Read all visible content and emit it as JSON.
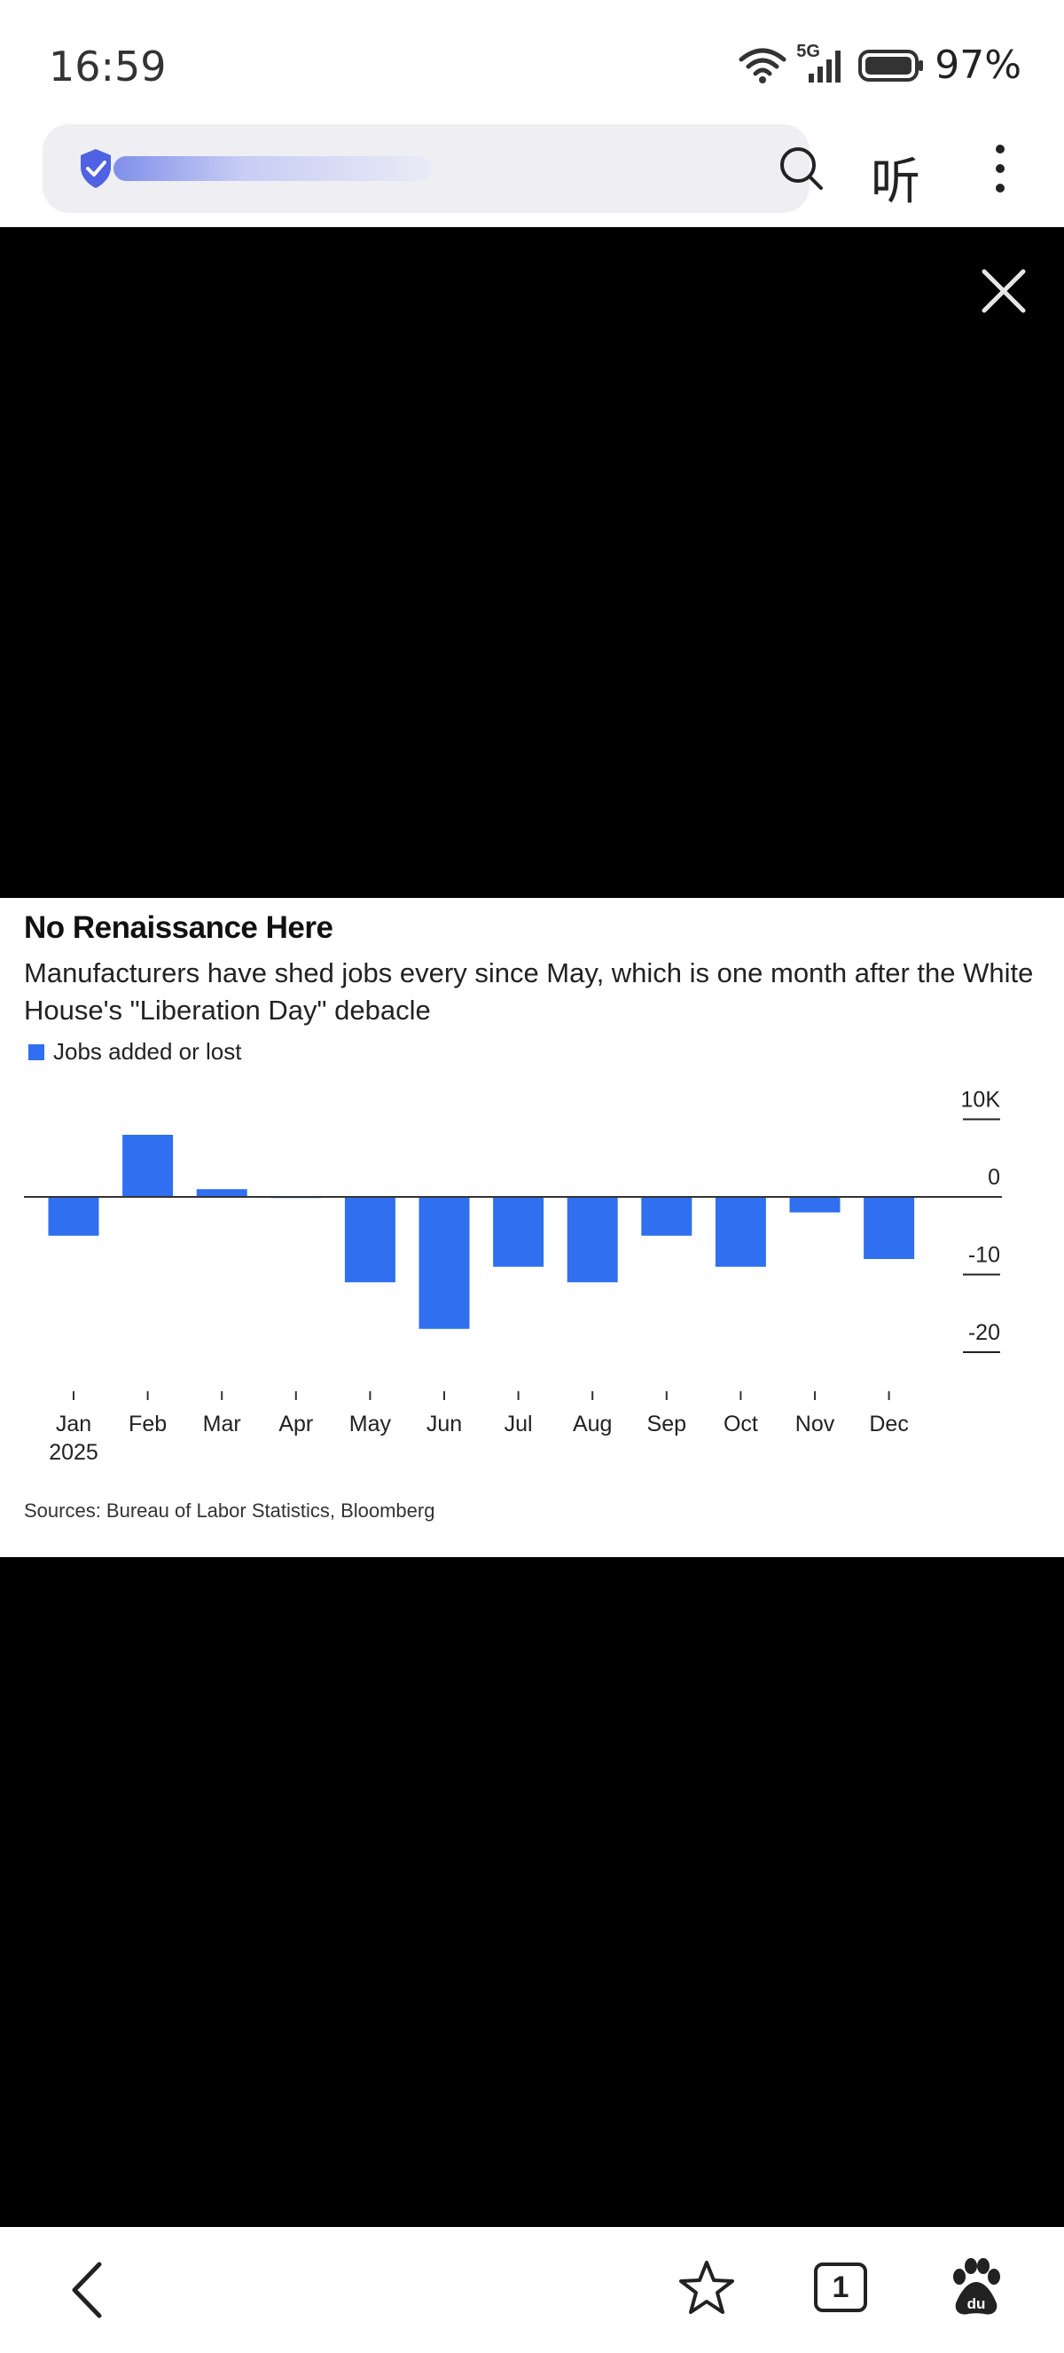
{
  "status_bar": {
    "time": "16:59",
    "network": "5G",
    "battery": "97%"
  },
  "browser": {
    "listen_label": "听",
    "tab_count": "1"
  },
  "chart_data": {
    "type": "bar",
    "title": "No Renaissance Here",
    "subtitle": "Manufacturers have shed jobs every since May, which is one month after the White House's \"Liberation Day\" debacle",
    "legend": [
      "Jobs added or lost"
    ],
    "categories": [
      "Jan",
      "Feb",
      "Mar",
      "Apr",
      "May",
      "Jun",
      "Jul",
      "Aug",
      "Sep",
      "Oct",
      "Nov",
      "Dec"
    ],
    "year_label": "2025",
    "series": [
      {
        "name": "Jobs added or lost",
        "values": [
          -5,
          8,
          1,
          0,
          -11,
          -17,
          -9,
          -11,
          -5,
          -9,
          -2,
          -8
        ]
      }
    ],
    "y_ticks": [
      {
        "value": 10,
        "label": "10K"
      },
      {
        "value": 0,
        "label": "0"
      },
      {
        "value": -10,
        "label": "-10"
      },
      {
        "value": -20,
        "label": "-20"
      }
    ],
    "ylim": [
      -20,
      10
    ],
    "color": "#2f6ff0",
    "source": "Sources: Bureau of Labor Statistics, Bloomberg"
  }
}
